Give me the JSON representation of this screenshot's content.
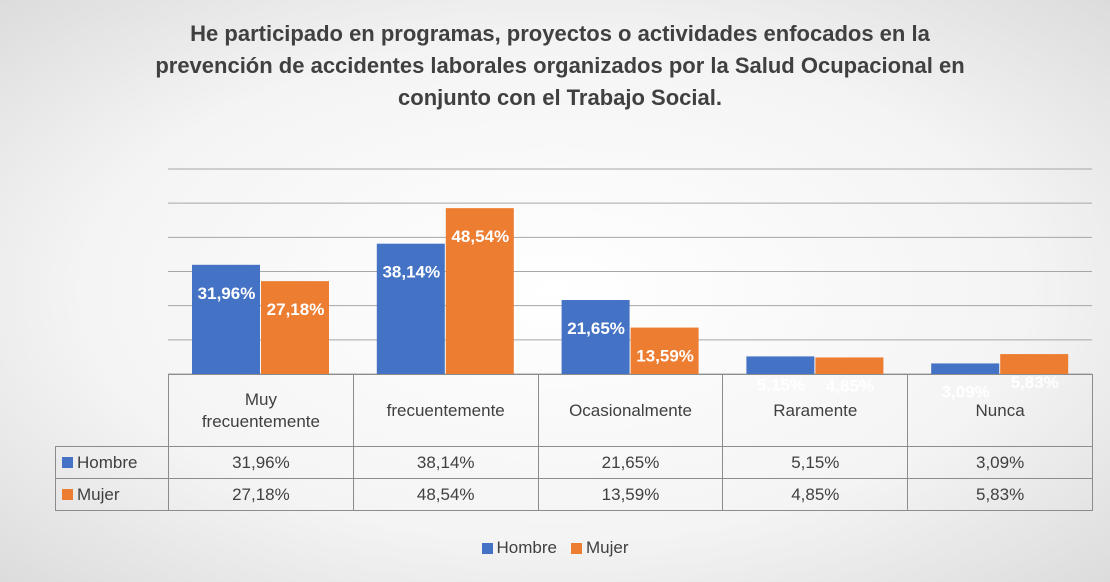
{
  "chart_data": {
    "type": "bar",
    "title": "He participado en programas, proyectos o actividades enfocados en la prevención de accidentes laborales organizados por la Salud Ocupacional en conjunto con el Trabajo Social.",
    "categories": [
      "Muy frecuentemente",
      "frecuentemente",
      "Ocasionalmente",
      "Raramente",
      "Nunca"
    ],
    "series": [
      {
        "name": "Hombre",
        "color": "#4472c4",
        "values": [
          31.96,
          38.14,
          21.65,
          5.15,
          3.09
        ],
        "value_labels": [
          "31,96%",
          "38,14%",
          "21,65%",
          "5,15%",
          "3,09%"
        ]
      },
      {
        "name": "Mujer",
        "color": "#ed7d31",
        "values": [
          27.18,
          48.54,
          13.59,
          4.85,
          5.83
        ],
        "value_labels": [
          "27,18%",
          "48,54%",
          "13,59%",
          "4,85%",
          "5,83%"
        ]
      }
    ],
    "ylim": [
      0,
      60
    ],
    "yticks": [
      0,
      10,
      20,
      30,
      40,
      50,
      60
    ],
    "grid": true
  }
}
